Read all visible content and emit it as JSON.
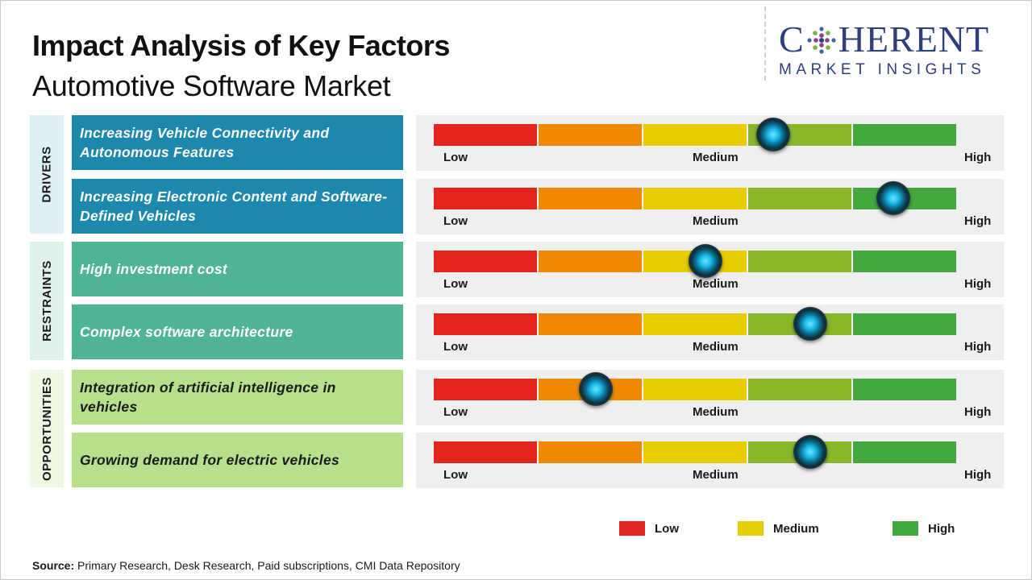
{
  "header": {
    "title": "Impact Analysis of Key Factors",
    "subtitle": "Automotive Software Market"
  },
  "logo": {
    "line1_pre": "C",
    "line1_post": "HERENT",
    "line2": "MARKET INSIGHTS"
  },
  "colors": {
    "drivers": "#1c88ad",
    "restraints": "#4fb495",
    "opportunities": "#b6e08c",
    "scale": [
      "#e3251e",
      "#ef8a00",
      "#e6cc00",
      "#8ab62b",
      "#43a83f"
    ],
    "knob": "#18b6e6"
  },
  "chart_data": {
    "type": "bar",
    "title": "Impact Analysis of Key Factors",
    "scale_labels": {
      "low": "Low",
      "medium": "Medium",
      "high": "High"
    },
    "scale_range": [
      0,
      1
    ],
    "groups": [
      {
        "name": "DRIVERS",
        "factors": [
          {
            "label": "Increasing Vehicle Connectivity and Autonomous Features",
            "value": 0.65
          },
          {
            "label": "Increasing Electronic Content and Software-Defined Vehicles",
            "value": 0.88
          }
        ]
      },
      {
        "name": "RESTRAINTS",
        "factors": [
          {
            "label": "High investment cost",
            "value": 0.52
          },
          {
            "label": "Complex software architecture",
            "value": 0.72
          }
        ]
      },
      {
        "name": "OPPORTUNITIES",
        "factors": [
          {
            "label": "Integration of artificial intelligence in vehicles",
            "value": 0.31
          },
          {
            "label": "Growing demand for electric vehicles",
            "value": 0.72
          }
        ]
      }
    ],
    "legend": [
      {
        "label": "Low",
        "color": "#e3251e"
      },
      {
        "label": "Medium",
        "color": "#e6cc00"
      },
      {
        "label": "High",
        "color": "#43a83f"
      }
    ]
  },
  "source": {
    "prefix": "Source:",
    "text": "Primary Research, Desk Research, Paid subscriptions, CMI Data Repository"
  }
}
